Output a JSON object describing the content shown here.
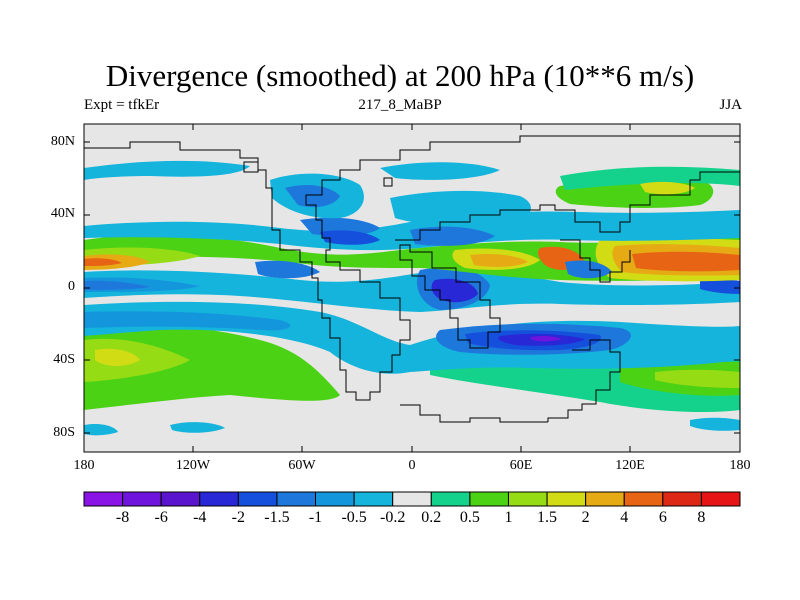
{
  "plot": {
    "title": "Divergence (smoothed) at 200 hPa (10**6 m/s)",
    "left_string": "Expt = tfkEr",
    "center_string": "217_8_MaBP",
    "right_string": "JJA"
  },
  "axes": {
    "x_ticks": [
      "180",
      "120W",
      "60W",
      "0",
      "60E",
      "120E",
      "180"
    ],
    "y_ticks": [
      "80N",
      "40N",
      "0",
      "40S",
      "80S"
    ]
  },
  "colorbar": {
    "labels": [
      "-8",
      "-6",
      "-4",
      "-2",
      "-1.5",
      "-1",
      "-0.5",
      "-0.2",
      "0.2",
      "0.5",
      "1",
      "1.5",
      "2",
      "4",
      "6",
      "8"
    ],
    "colors": [
      "#8a14e6",
      "#6e14dc",
      "#5a14cd",
      "#2828d7",
      "#1450dc",
      "#1e78dc",
      "#1496dc",
      "#14b4dc",
      "#e6e6e6",
      "#14d28c",
      "#4bd214",
      "#96dc14",
      "#d2dc14",
      "#e6aa14",
      "#e66414",
      "#dc2814",
      "#e61414"
    ]
  }
}
